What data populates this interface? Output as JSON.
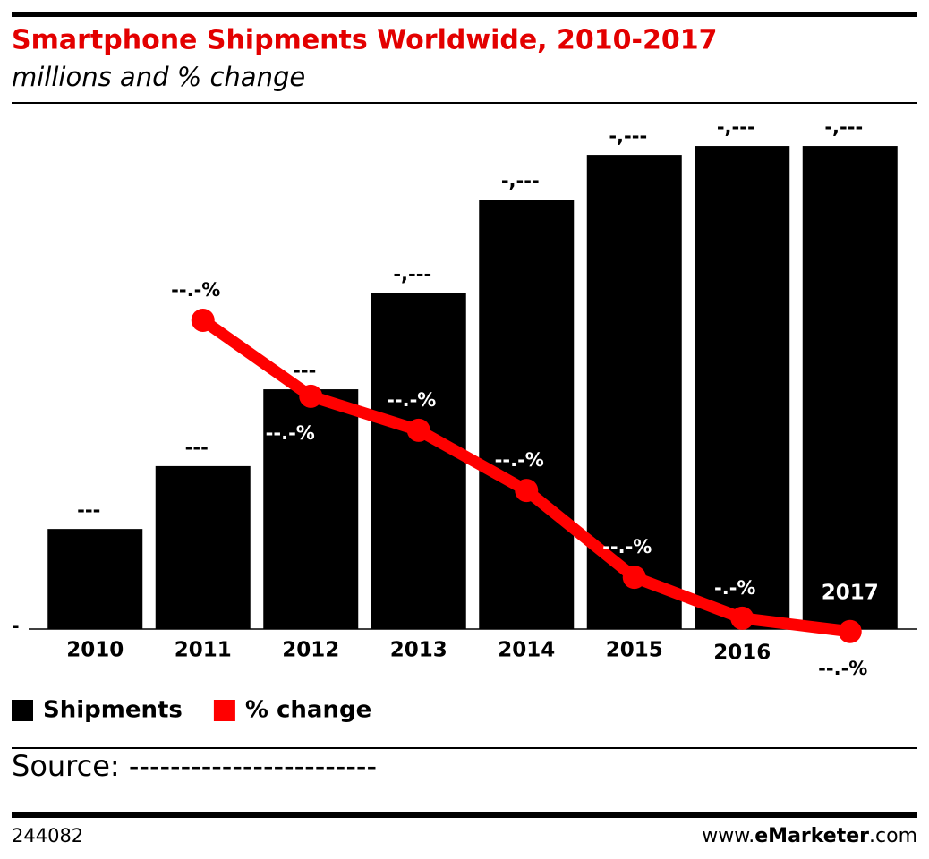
{
  "chart_data": {
    "type": "bar",
    "title": "Smartphone Shipments Worldwide, 2010-2017",
    "subtitle": "millions and % change",
    "categories": [
      "2010",
      "2011",
      "2012",
      "2013",
      "2014",
      "2015",
      "2016",
      "2017"
    ],
    "series": [
      {
        "name": "Shipments",
        "type": "bar",
        "color": "#000000",
        "values": [
          301,
          490,
          721,
          1011,
          1291,
          1426,
          1453,
          1453
        ],
        "value_labels": [
          "---",
          "---",
          "---",
          "-,---",
          "-,---",
          "-,---",
          "-,---",
          "-,---"
        ]
      },
      {
        "name": "% change",
        "type": "line",
        "color": "#ff0000",
        "axis": "y2",
        "values": [
          null,
          62.6,
          47.2,
          40.3,
          28.1,
          10.5,
          2.2,
          -0.5
        ],
        "value_labels": [
          null,
          "--.-%",
          "--.-%",
          "--.-%",
          "--.-%",
          "--.-%",
          "-.-%",
          "--.-%"
        ]
      }
    ],
    "ylim": [
      0,
      1550
    ],
    "yticks": [
      {
        "value": 0,
        "label": "-"
      }
    ],
    "y2lim": [
      0,
      104.5
    ],
    "legend": "bottom-left"
  },
  "source": "Source: ------------------------",
  "footer": {
    "id": "244082",
    "brand": [
      "www.",
      "eMarketer",
      ".com"
    ]
  }
}
